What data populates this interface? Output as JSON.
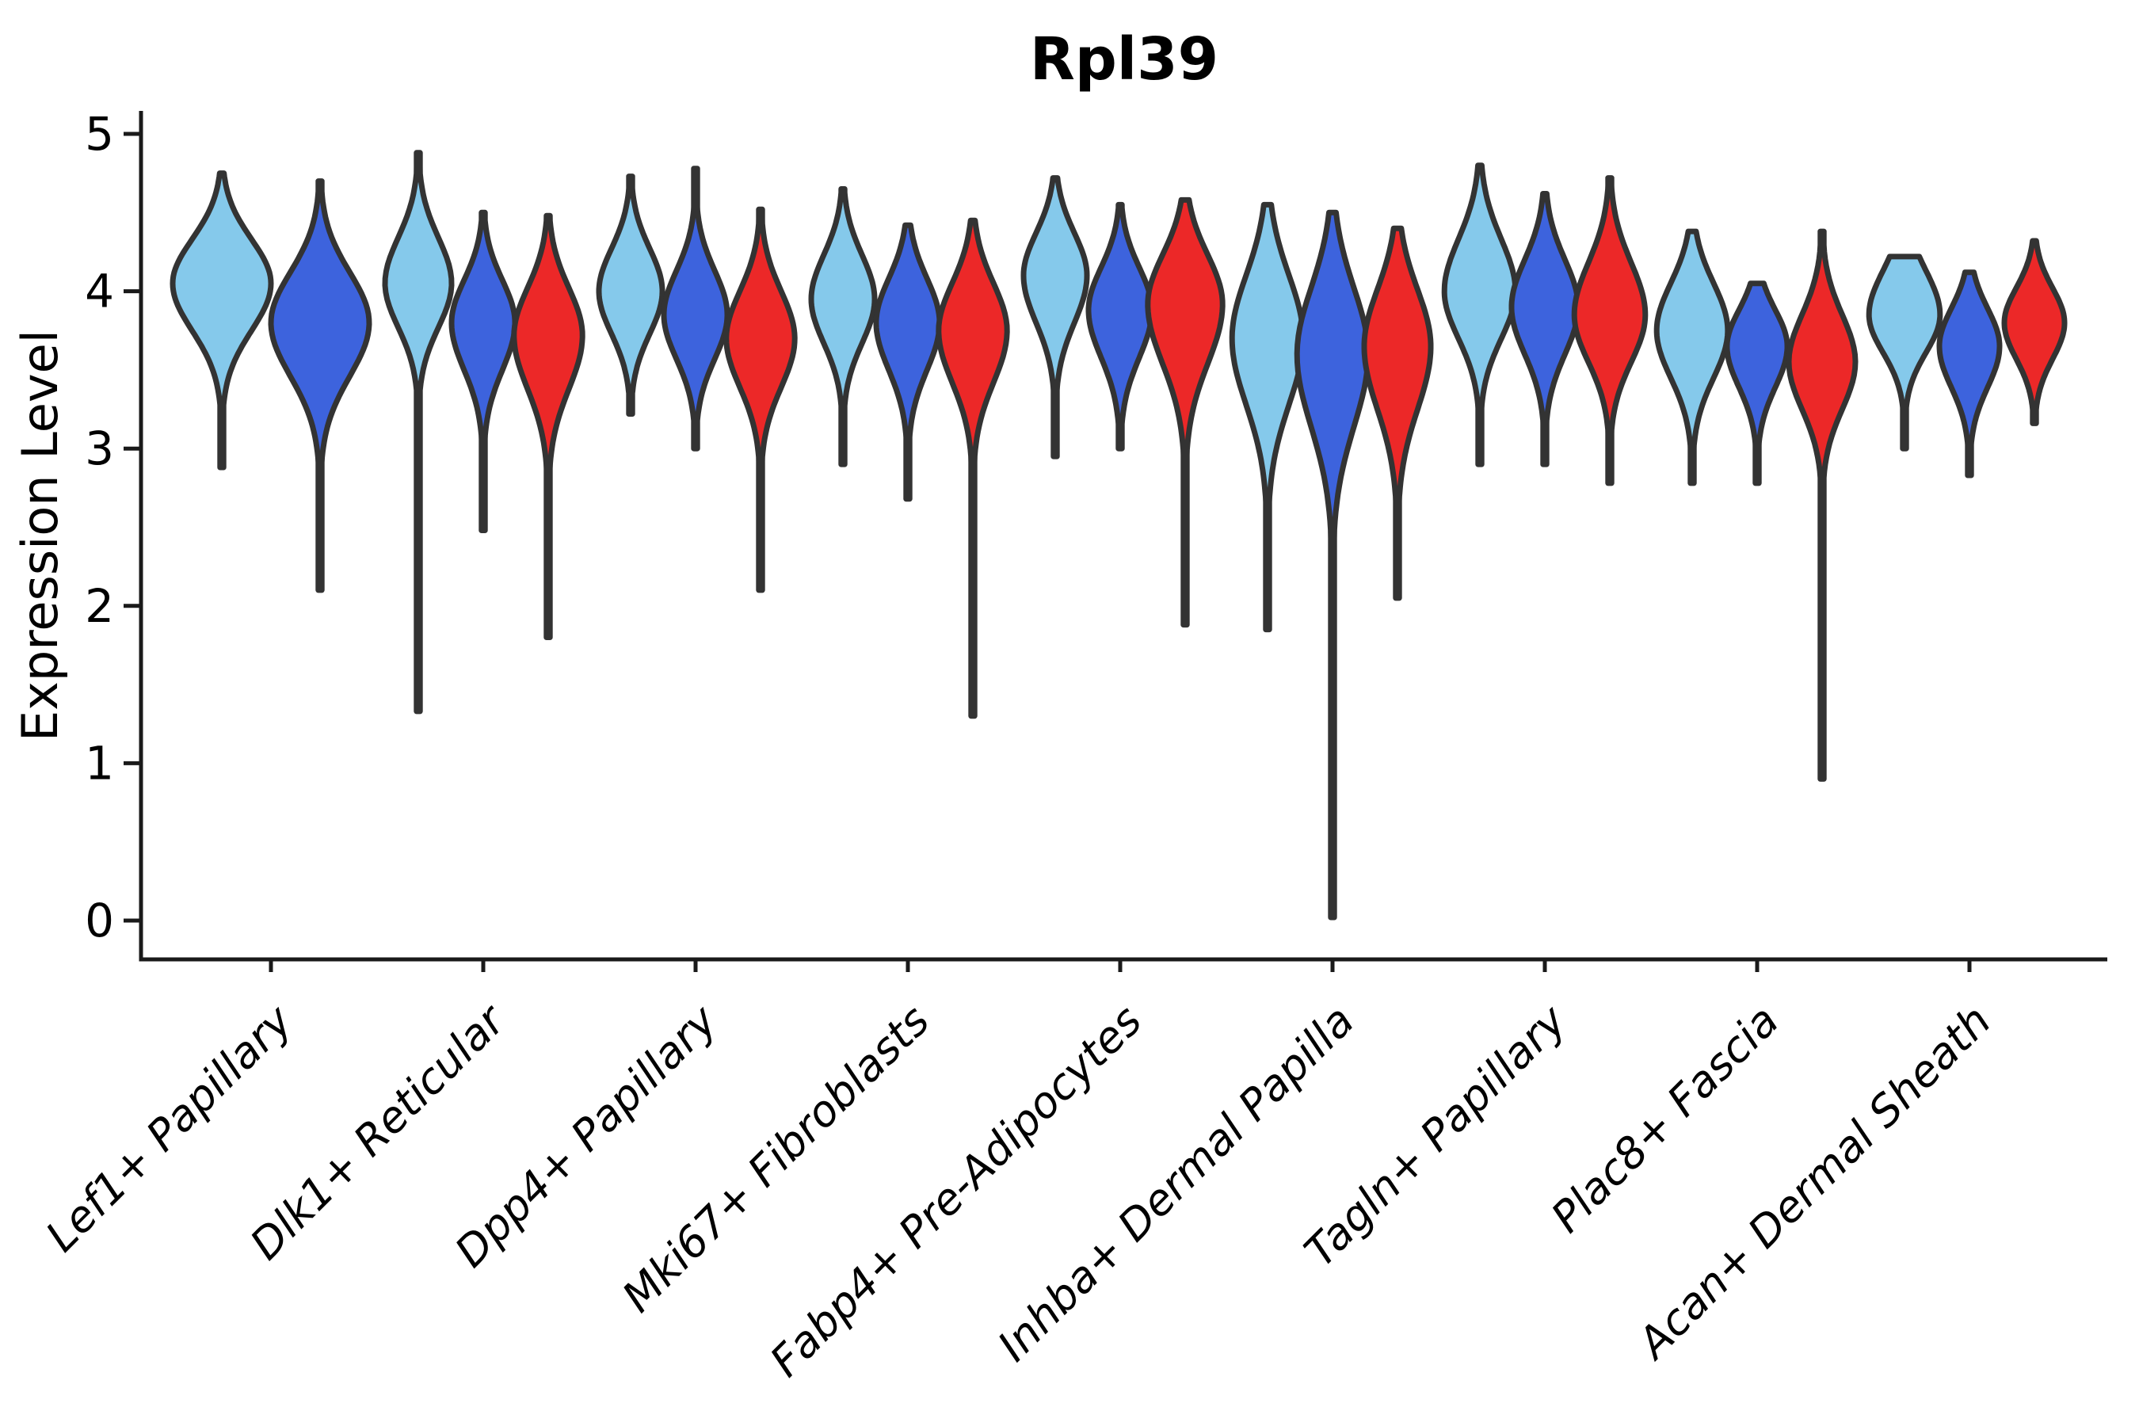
{
  "chart_data": {
    "type": "violin",
    "title": "Rpl39",
    "ylabel": "Expression Level",
    "xlabel": "",
    "ylim": [
      0,
      5
    ],
    "yticks": [
      0,
      1,
      2,
      3,
      4,
      5
    ],
    "grid": false,
    "legend": "none",
    "series_colors": {
      "light_blue": "#85C9EB",
      "royal_blue": "#3D63DD",
      "red": "#EC2828"
    },
    "outline_color": "#333333",
    "axis_color": "#1a1a1a",
    "categories": [
      "Lef1+ Papillary",
      "Dlk1+ Reticular",
      "Dpp4+ Papillary",
      "Mki67+ Fibroblasts",
      "Fabp4+ Pre-Adipocytes",
      "Inhba+ Dermal Papilla",
      "Tagln+ Papillary",
      "Plac8+ Fascia",
      "Acan+ Dermal Sheath"
    ],
    "groups": [
      {
        "category": "Lef1+ Papillary",
        "violins": [
          {
            "series": "light_blue",
            "peak": 4.05,
            "sigma_up": 0.28,
            "sigma_down": 0.3,
            "max": 4.75,
            "min": 2.88,
            "width": 1.55
          },
          {
            "series": "royal_blue",
            "peak": 3.8,
            "sigma_up": 0.32,
            "sigma_down": 0.34,
            "max": 4.7,
            "min": 2.1,
            "width": 1.55
          }
        ]
      },
      {
        "category": "Dlk1+ Reticular",
        "violins": [
          {
            "series": "light_blue",
            "peak": 4.05,
            "sigma_up": 0.29,
            "sigma_down": 0.28,
            "max": 4.88,
            "min": 1.33,
            "width": 1.05
          },
          {
            "series": "royal_blue",
            "peak": 3.8,
            "sigma_up": 0.27,
            "sigma_down": 0.3,
            "max": 4.5,
            "min": 2.48,
            "width": 1.0
          },
          {
            "series": "red",
            "peak": 3.72,
            "sigma_up": 0.3,
            "sigma_down": 0.34,
            "max": 4.48,
            "min": 1.8,
            "width": 1.08
          }
        ]
      },
      {
        "category": "Dpp4+ Papillary",
        "violins": [
          {
            "series": "light_blue",
            "peak": 4.0,
            "sigma_up": 0.27,
            "sigma_down": 0.27,
            "max": 4.73,
            "min": 3.22,
            "width": 1.0
          },
          {
            "series": "royal_blue",
            "peak": 3.85,
            "sigma_up": 0.28,
            "sigma_down": 0.28,
            "max": 4.78,
            "min": 3.0,
            "width": 1.0
          },
          {
            "series": "red",
            "peak": 3.7,
            "sigma_up": 0.3,
            "sigma_down": 0.31,
            "max": 4.52,
            "min": 2.1,
            "width": 1.08
          }
        ]
      },
      {
        "category": "Mki67+ Fibroblasts",
        "violins": [
          {
            "series": "light_blue",
            "peak": 3.95,
            "sigma_up": 0.28,
            "sigma_down": 0.28,
            "max": 4.65,
            "min": 2.9,
            "width": 1.0
          },
          {
            "series": "royal_blue",
            "peak": 3.8,
            "sigma_up": 0.28,
            "sigma_down": 0.3,
            "max": 4.42,
            "min": 2.68,
            "width": 1.0
          },
          {
            "series": "red",
            "peak": 3.75,
            "sigma_up": 0.3,
            "sigma_down": 0.33,
            "max": 4.45,
            "min": 1.3,
            "width": 1.08
          }
        ]
      },
      {
        "category": "Fabp4+ Pre-Adipocytes",
        "violins": [
          {
            "series": "light_blue",
            "peak": 4.1,
            "sigma_up": 0.27,
            "sigma_down": 0.3,
            "max": 4.72,
            "min": 2.95,
            "width": 1.0
          },
          {
            "series": "royal_blue",
            "peak": 3.88,
            "sigma_up": 0.27,
            "sigma_down": 0.3,
            "max": 4.55,
            "min": 3.0,
            "width": 1.0
          },
          {
            "series": "red",
            "peak": 3.92,
            "sigma_up": 0.31,
            "sigma_down": 0.38,
            "max": 4.58,
            "min": 1.88,
            "width": 1.18
          }
        ]
      },
      {
        "category": "Inhba+ Dermal Papilla",
        "violins": [
          {
            "series": "light_blue",
            "peak": 3.7,
            "sigma_up": 0.4,
            "sigma_down": 0.42,
            "max": 4.55,
            "min": 1.85,
            "width": 1.12
          },
          {
            "series": "royal_blue",
            "peak": 3.6,
            "sigma_up": 0.42,
            "sigma_down": 0.46,
            "max": 4.5,
            "min": 0.02,
            "width": 1.12
          },
          {
            "series": "red",
            "peak": 3.65,
            "sigma_up": 0.36,
            "sigma_down": 0.4,
            "max": 4.4,
            "min": 2.05,
            "width": 1.05
          }
        ]
      },
      {
        "category": "Tagln+ Papillary",
        "violins": [
          {
            "series": "light_blue",
            "peak": 4.0,
            "sigma_up": 0.33,
            "sigma_down": 0.3,
            "max": 4.8,
            "min": 2.9,
            "width": 1.12
          },
          {
            "series": "royal_blue",
            "peak": 3.9,
            "sigma_up": 0.3,
            "sigma_down": 0.3,
            "max": 4.62,
            "min": 2.9,
            "width": 1.05
          },
          {
            "series": "red",
            "peak": 3.85,
            "sigma_up": 0.33,
            "sigma_down": 0.3,
            "max": 4.72,
            "min": 2.78,
            "width": 1.12
          }
        ]
      },
      {
        "category": "Plac8+ Fascia",
        "violins": [
          {
            "series": "light_blue",
            "peak": 3.75,
            "sigma_up": 0.3,
            "sigma_down": 0.3,
            "max": 4.38,
            "min": 2.78,
            "width": 1.12
          },
          {
            "series": "royal_blue",
            "peak": 3.65,
            "sigma_up": 0.23,
            "sigma_down": 0.26,
            "max": 4.05,
            "min": 2.78,
            "width": 0.95
          },
          {
            "series": "red",
            "peak": 3.55,
            "sigma_up": 0.3,
            "sigma_down": 0.3,
            "max": 4.38,
            "min": 0.9,
            "width": 1.05
          }
        ]
      },
      {
        "category": "Acan+ Dermal Sheath",
        "violins": [
          {
            "series": "light_blue",
            "peak": 3.85,
            "sigma_up": 0.28,
            "sigma_down": 0.24,
            "max": 4.22,
            "min": 3.0,
            "width": 1.12
          },
          {
            "series": "royal_blue",
            "peak": 3.65,
            "sigma_up": 0.24,
            "sigma_down": 0.26,
            "max": 4.12,
            "min": 2.83,
            "width": 0.95
          },
          {
            "series": "red",
            "peak": 3.8,
            "sigma_up": 0.22,
            "sigma_down": 0.23,
            "max": 4.32,
            "min": 3.16,
            "width": 0.95
          }
        ]
      }
    ]
  }
}
